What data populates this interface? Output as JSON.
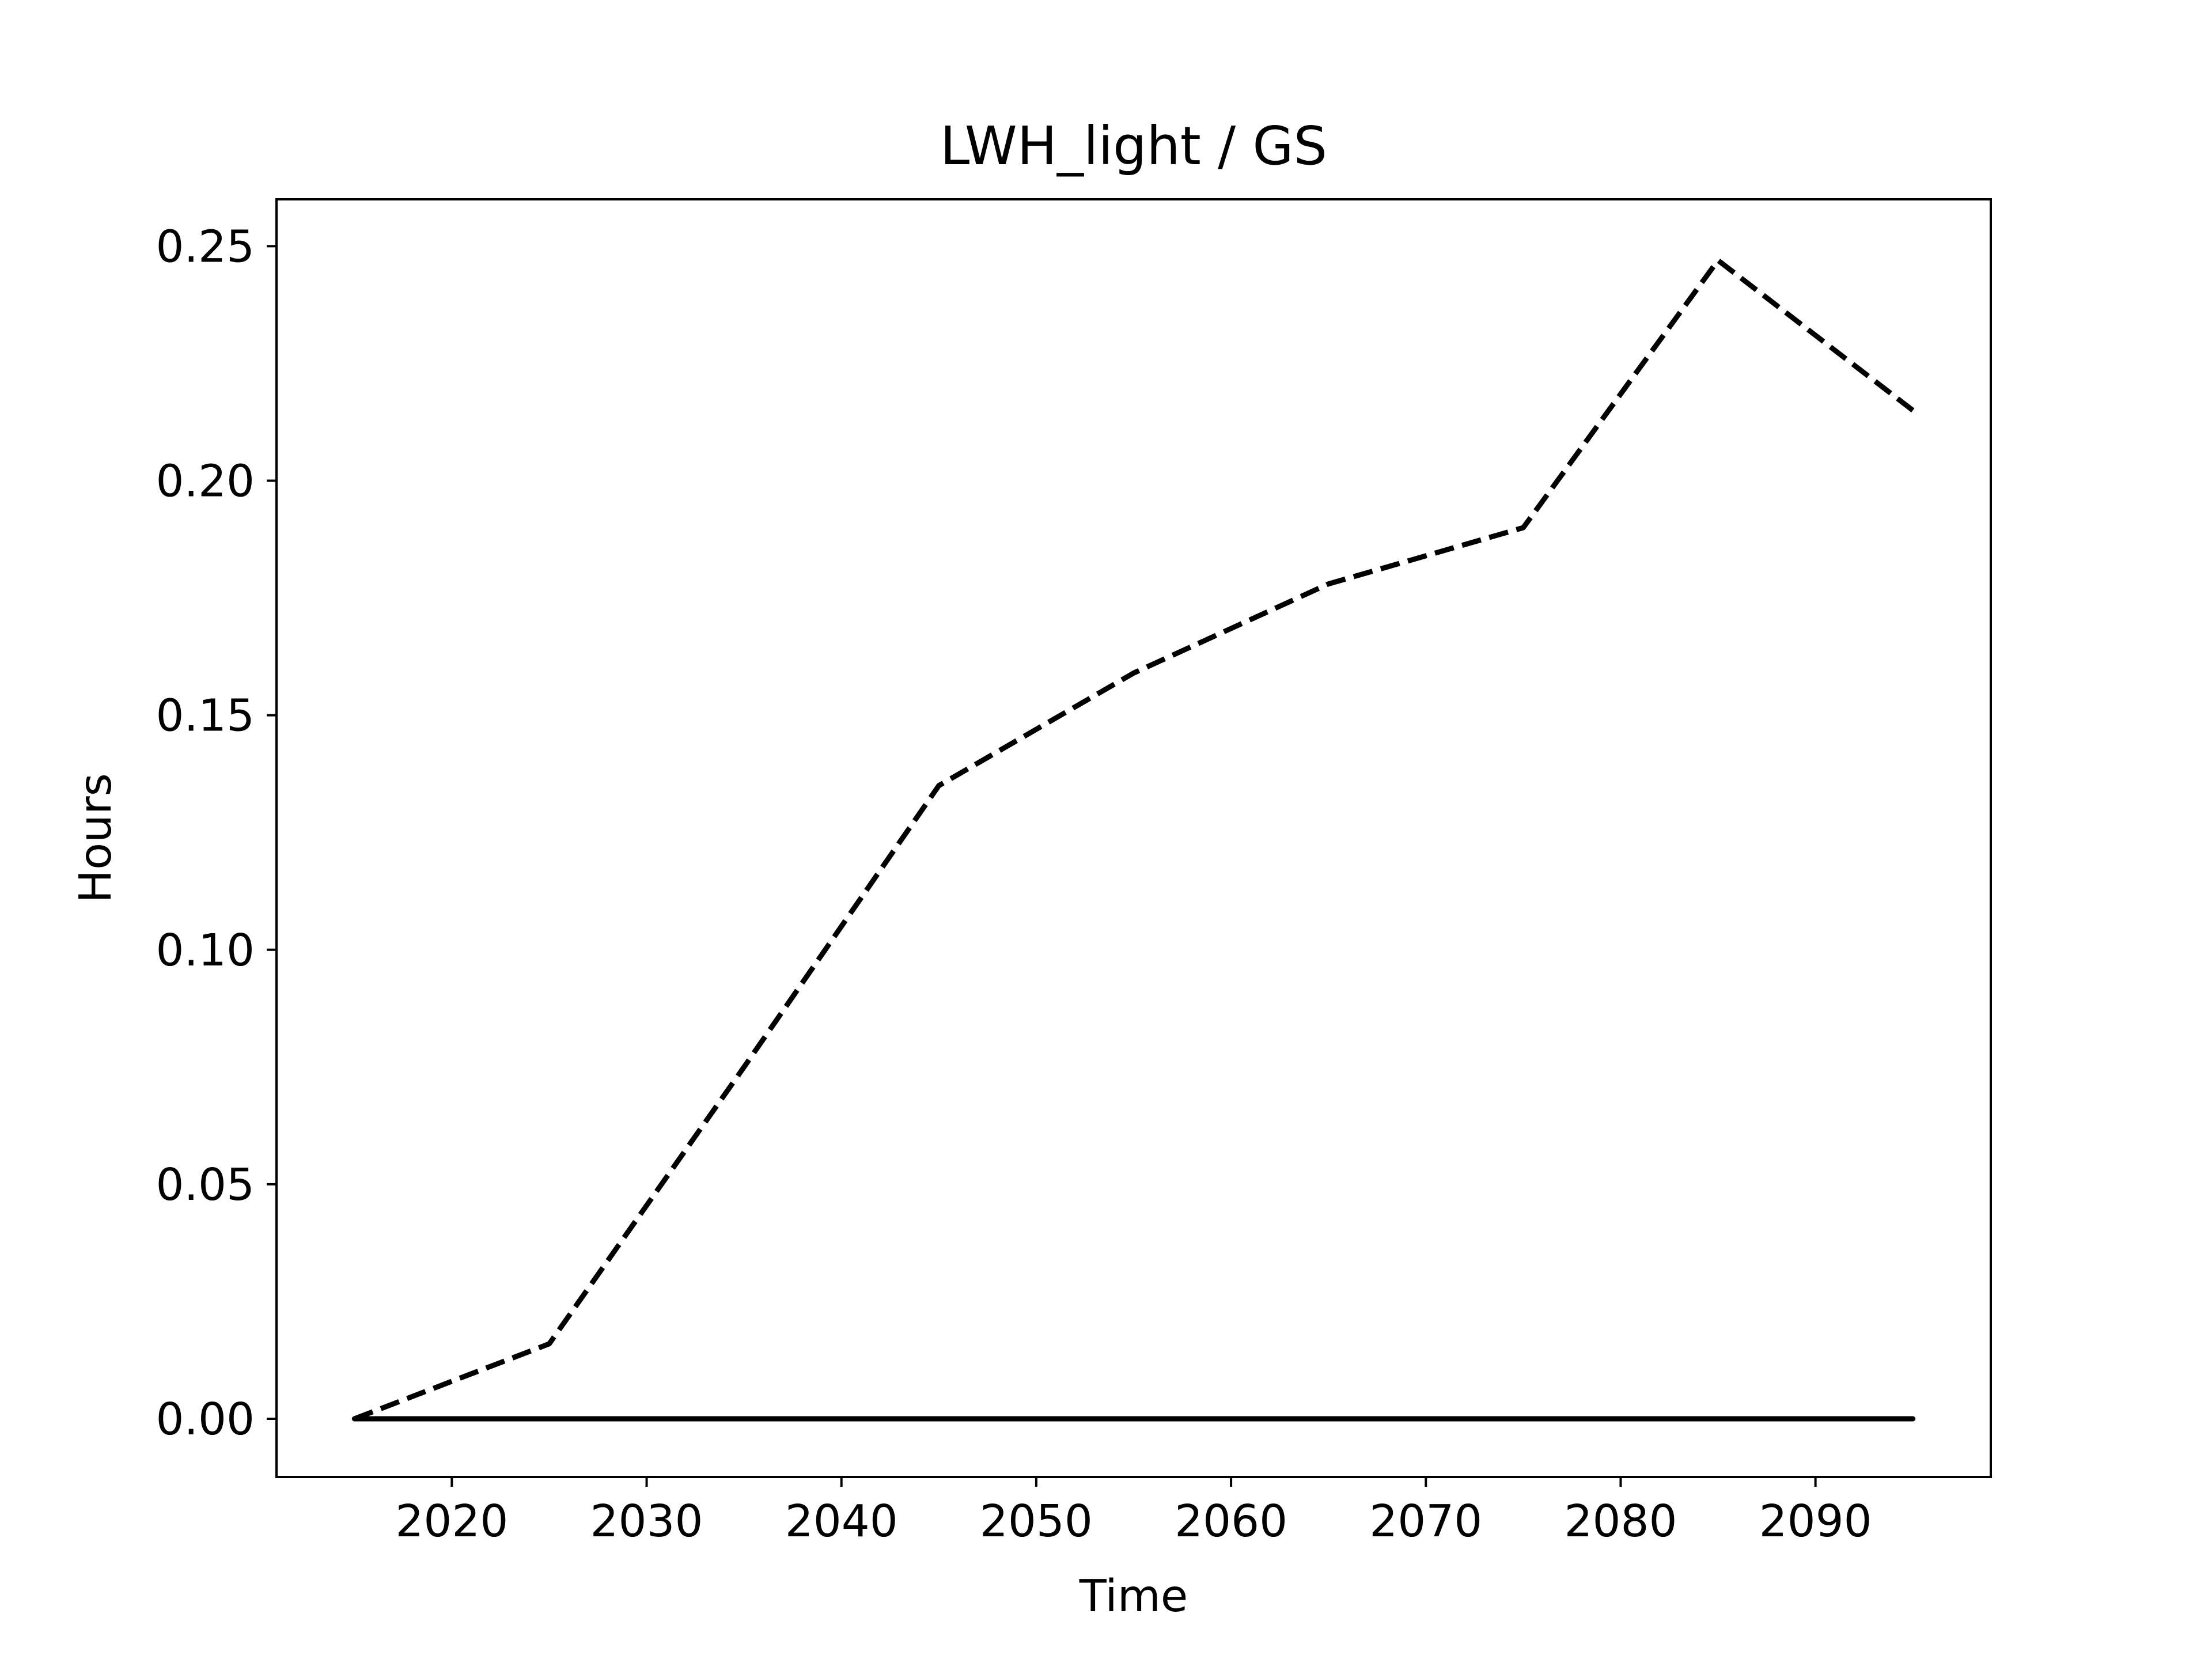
{
  "chart_data": {
    "type": "line",
    "title": "LWH_light / GS",
    "xlabel": "Time",
    "ylabel": "Hours",
    "xlim": [
      2011.0,
      2099.0
    ],
    "ylim": [
      -0.0124,
      0.26
    ],
    "x_ticks": [
      2020,
      2030,
      2040,
      2050,
      2060,
      2070,
      2080,
      2090
    ],
    "y_ticks": [
      0.0,
      0.05,
      0.1,
      0.15,
      0.2,
      0.25
    ],
    "x_tick_labels": [
      "2020",
      "2030",
      "2040",
      "2050",
      "2060",
      "2070",
      "2080",
      "2090"
    ],
    "y_tick_labels": [
      "0.00",
      "0.05",
      "0.10",
      "0.15",
      "0.20",
      "0.25"
    ],
    "grid": false,
    "legend": "none",
    "series": [
      {
        "style": "dashed",
        "color": "#000000",
        "x": [
          2015,
          2025,
          2035,
          2045,
          2055,
          2065,
          2075,
          2085,
          2095
        ],
        "y": [
          0.0,
          0.016,
          0.075,
          0.135,
          0.159,
          0.178,
          0.19,
          0.247,
          0.215
        ]
      },
      {
        "style": "solid",
        "color": "#000000",
        "x": [
          2015,
          2025,
          2035,
          2045,
          2055,
          2065,
          2075,
          2085,
          2095
        ],
        "y": [
          0.0,
          0.0,
          0.0,
          0.0,
          0.0,
          0.0,
          0.0,
          0.0,
          0.0
        ]
      }
    ]
  }
}
